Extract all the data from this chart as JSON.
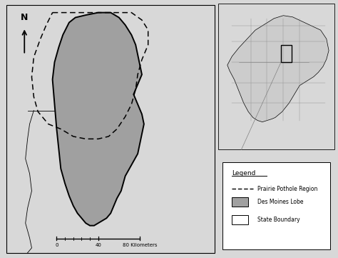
{
  "background_color": "#d8d8d8",
  "main_map_bg": "#ffffff",
  "inset_map_bg": "#ffffff",
  "gray_fill": "#a0a0a0",
  "legend_title": "Legend",
  "legend_item1": "Prairie Pothole Region",
  "legend_item2": "Des Moines Lobe",
  "legend_item3": "State Boundary",
  "north_arrow_label": "N",
  "scale_label0": "0",
  "scale_label40": "40",
  "scale_label80": "80 Kilometers"
}
